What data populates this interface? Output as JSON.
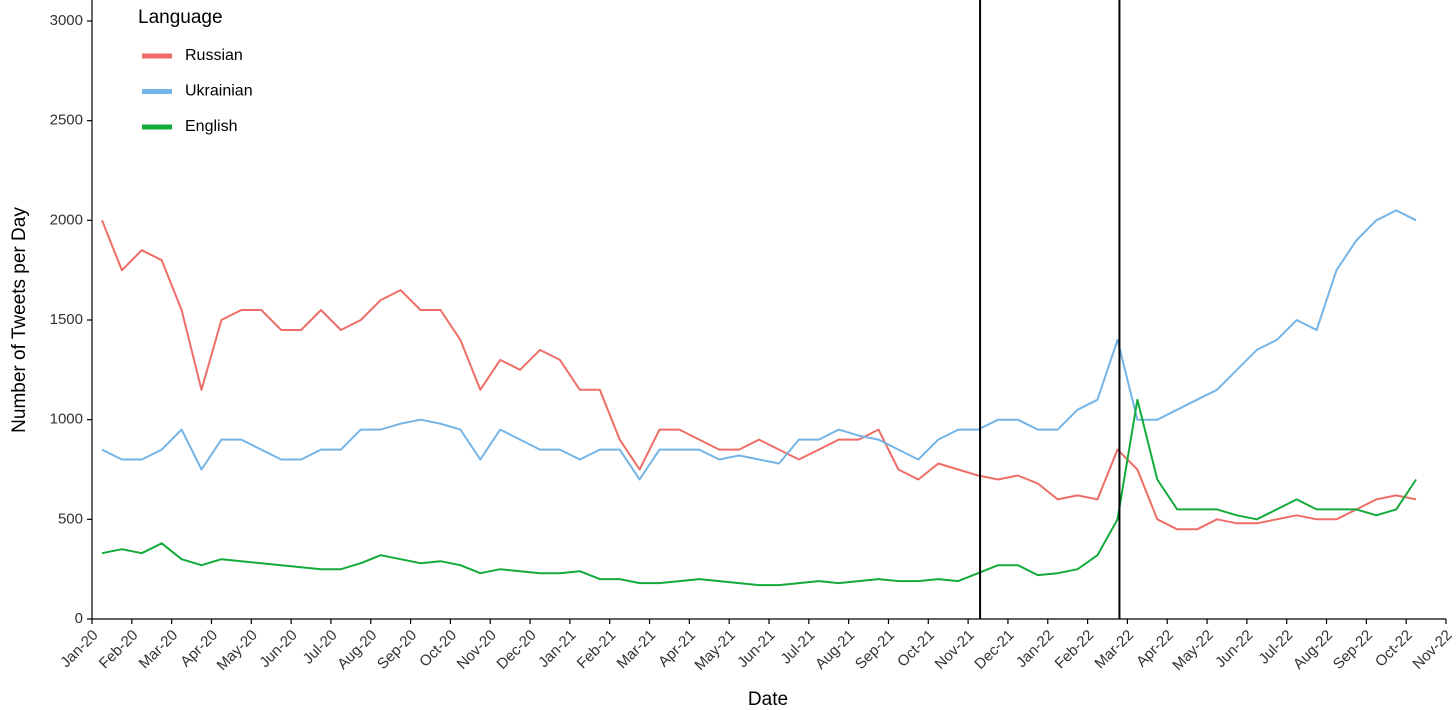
{
  "chart_data": {
    "type": "line",
    "xlabel": "Date",
    "ylabel": "Number of Tweets per Day",
    "legend_title": "Language",
    "legend": "top-left",
    "x": [
      0.25,
      0.75,
      1.25,
      1.75,
      2.25,
      2.75,
      3.25,
      3.75,
      4.25,
      4.75,
      5.25,
      5.75,
      6.25,
      6.75,
      7.25,
      7.75,
      8.25,
      8.75,
      9.25,
      9.75,
      10.25,
      10.75,
      11.25,
      11.75,
      12.25,
      12.75,
      13.25,
      13.75,
      14.25,
      14.75,
      15.25,
      15.75,
      16.25,
      16.75,
      17.25,
      17.75,
      18.25,
      18.75,
      19.25,
      19.75,
      20.25,
      20.75,
      21.25,
      21.75,
      22.25,
      22.75,
      23.25,
      23.75,
      24.25,
      24.75,
      25.25,
      25.75,
      26.25,
      26.75,
      27.25,
      27.75,
      28.25,
      28.75,
      29.25,
      29.75,
      30.25,
      30.75,
      31.25,
      31.75,
      32.25,
      32.75,
      33.25
    ],
    "series": [
      {
        "name": "Russian",
        "color": "#ee6e67",
        "values": [
          2000,
          1750,
          1850,
          1800,
          1550,
          1150,
          1500,
          1550,
          1550,
          1450,
          1450,
          1550,
          1450,
          1500,
          1600,
          1650,
          1550,
          1550,
          1400,
          1150,
          1300,
          1250,
          1350,
          1300,
          1150,
          1150,
          900,
          750,
          950,
          950,
          900,
          850,
          850,
          900,
          850,
          800,
          850,
          900,
          900,
          950,
          750,
          700,
          780,
          750,
          720,
          700,
          720,
          680,
          600,
          620,
          600,
          850,
          750,
          500,
          450,
          450,
          500,
          480,
          480,
          500,
          520,
          500,
          500,
          550,
          600,
          620,
          600
        ]
      },
      {
        "name": "Ukrainian",
        "color": "#74b4e6",
        "values": [
          850,
          800,
          800,
          850,
          950,
          750,
          900,
          900,
          850,
          800,
          800,
          850,
          850,
          950,
          950,
          980,
          1000,
          980,
          950,
          800,
          950,
          900,
          850,
          850,
          800,
          850,
          850,
          700,
          850,
          850,
          850,
          800,
          820,
          800,
          780,
          900,
          900,
          950,
          920,
          900,
          850,
          800,
          900,
          950,
          950,
          1000,
          1000,
          950,
          950,
          1050,
          1100,
          1400,
          1000,
          1000,
          1050,
          1100,
          1150,
          1250,
          1350,
          1400,
          1500,
          1450,
          1750,
          1900,
          2000,
          2050,
          2000
        ]
      },
      {
        "name": "English",
        "color": "#13ab3a",
        "values": [
          330,
          350,
          330,
          380,
          300,
          270,
          300,
          290,
          280,
          270,
          260,
          250,
          250,
          280,
          320,
          300,
          280,
          290,
          270,
          230,
          250,
          240,
          230,
          230,
          240,
          200,
          200,
          180,
          180,
          190,
          200,
          190,
          180,
          170,
          170,
          180,
          190,
          180,
          190,
          200,
          190,
          190,
          200,
          190,
          230,
          270,
          270,
          220,
          230,
          250,
          320,
          500,
          1100,
          700,
          550,
          550,
          550,
          520,
          500,
          550,
          600,
          550,
          550,
          550,
          520,
          550,
          700
        ]
      }
    ],
    "vlines": [
      22.3,
      25.8
    ],
    "xlim": [
      0,
      34
    ],
    "ylim": [
      0,
      3000
    ],
    "yticks": [
      0,
      500,
      1000,
      1500,
      2000,
      2500,
      3000
    ],
    "xticks": [
      {
        "value": 0,
        "label": "Jan-20"
      },
      {
        "value": 1,
        "label": "Feb-20"
      },
      {
        "value": 2,
        "label": "Mar-20"
      },
      {
        "value": 3,
        "label": "Apr-20"
      },
      {
        "value": 4,
        "label": "May-20"
      },
      {
        "value": 5,
        "label": "Jun-20"
      },
      {
        "value": 6,
        "label": "Jul-20"
      },
      {
        "value": 7,
        "label": "Aug-20"
      },
      {
        "value": 8,
        "label": "Sep-20"
      },
      {
        "value": 9,
        "label": "Oct-20"
      },
      {
        "value": 10,
        "label": "Nov-20"
      },
      {
        "value": 11,
        "label": "Dec-20"
      },
      {
        "value": 12,
        "label": "Jan-21"
      },
      {
        "value": 13,
        "label": "Feb-21"
      },
      {
        "value": 14,
        "label": "Mar-21"
      },
      {
        "value": 15,
        "label": "Apr-21"
      },
      {
        "value": 16,
        "label": "May-21"
      },
      {
        "value": 17,
        "label": "Jun-21"
      },
      {
        "value": 18,
        "label": "Jul-21"
      },
      {
        "value": 19,
        "label": "Aug-21"
      },
      {
        "value": 20,
        "label": "Sep-21"
      },
      {
        "value": 21,
        "label": "Oct-21"
      },
      {
        "value": 22,
        "label": "Nov-21"
      },
      {
        "value": 23,
        "label": "Dec-21"
      },
      {
        "value": 24,
        "label": "Jan-22"
      },
      {
        "value": 25,
        "label": "Feb-22"
      },
      {
        "value": 26,
        "label": "Mar-22"
      },
      {
        "value": 27,
        "label": "Apr-22"
      },
      {
        "value": 28,
        "label": "May-22"
      },
      {
        "value": 29,
        "label": "Jun-22"
      },
      {
        "value": 30,
        "label": "Jul-22"
      },
      {
        "value": 31,
        "label": "Aug-22"
      },
      {
        "value": 32,
        "label": "Sep-22"
      },
      {
        "value": 33,
        "label": "Oct-22"
      },
      {
        "value": 34,
        "label": "Nov-22"
      }
    ],
    "grid": false
  }
}
